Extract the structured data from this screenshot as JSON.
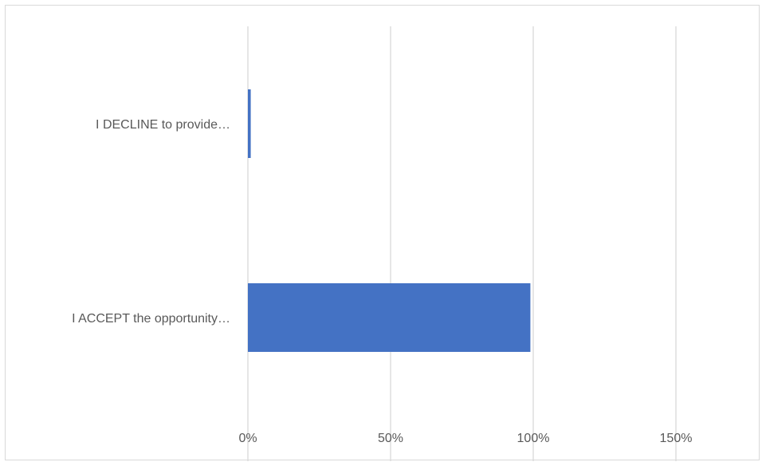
{
  "chart_data": {
    "type": "bar",
    "orientation": "horizontal",
    "categories": [
      "I DECLINE to provide…",
      "I ACCEPT the opportunity…"
    ],
    "values": [
      1,
      99
    ],
    "x_ticks": [
      "0%",
      "50%",
      "100%",
      "150%"
    ],
    "xlim": [
      0,
      150
    ],
    "unit": "%",
    "grid": true,
    "legend": "none",
    "bar_color": "#4472c4",
    "grid_color": "#d9d9d9",
    "label_color": "#595959"
  }
}
